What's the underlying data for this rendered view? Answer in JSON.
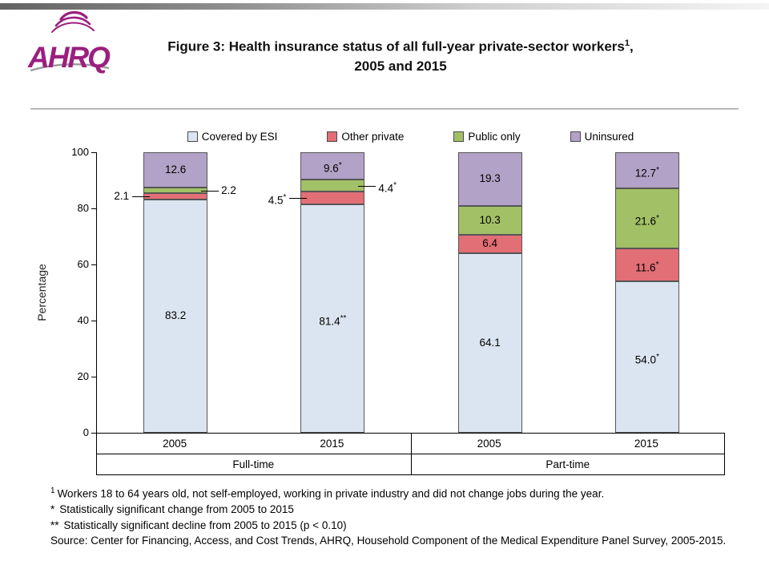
{
  "header": {
    "logo_text": "AHRQ",
    "logo_color": "#9b1f7f",
    "title_line1": "Figure 3: Health insurance status of all full-year private-sector workers",
    "title_sup": "1",
    "title_comma": ",",
    "title_line2": "2005 and 2015"
  },
  "chart_data": {
    "type": "stacked-bar",
    "ylabel": "Percentage",
    "ylim": [
      0,
      100
    ],
    "yticks": [
      0,
      20,
      40,
      60,
      80,
      100
    ],
    "grid": "off",
    "legend_position": "top",
    "legend": [
      {
        "series": "Covered by ESI",
        "color": "#dbe5f1"
      },
      {
        "series": "Other private",
        "color": "#e26e76"
      },
      {
        "series": "Public only",
        "color": "#a2c065"
      },
      {
        "series": "Uninsured",
        "color": "#b3a2c7"
      }
    ],
    "groups": [
      {
        "label": "Full-time",
        "bars": [
          {
            "category": "2005",
            "segments": [
              {
                "series": "Covered by ESI",
                "value": 83.2,
                "label": "83.2",
                "sup": "",
                "label_pos": "inside"
              },
              {
                "series": "Other private",
                "value": 2.1,
                "label": "2.1",
                "sup": "",
                "label_pos": "left"
              },
              {
                "series": "Public only",
                "value": 2.2,
                "label": "2.2",
                "sup": "",
                "label_pos": "right"
              },
              {
                "series": "Uninsured",
                "value": 12.6,
                "label": "12.6",
                "sup": "",
                "label_pos": "inside"
              }
            ]
          },
          {
            "category": "2015",
            "segments": [
              {
                "series": "Covered by ESI",
                "value": 81.4,
                "label": "81.4",
                "sup": "**",
                "label_pos": "inside"
              },
              {
                "series": "Other private",
                "value": 4.5,
                "label": "4.5",
                "sup": "*",
                "label_pos": "left"
              },
              {
                "series": "Public only",
                "value": 4.4,
                "label": "4.4",
                "sup": "*",
                "label_pos": "right"
              },
              {
                "series": "Uninsured",
                "value": 9.6,
                "label": "9.6",
                "sup": "*",
                "label_pos": "inside"
              }
            ]
          }
        ]
      },
      {
        "label": "Part-time",
        "bars": [
          {
            "category": "2005",
            "segments": [
              {
                "series": "Covered by ESI",
                "value": 64.1,
                "label": "64.1",
                "sup": "",
                "label_pos": "inside"
              },
              {
                "series": "Other private",
                "value": 6.4,
                "label": "6.4",
                "sup": "",
                "label_pos": "inside"
              },
              {
                "series": "Public only",
                "value": 10.3,
                "label": "10.3",
                "sup": "",
                "label_pos": "inside"
              },
              {
                "series": "Uninsured",
                "value": 19.3,
                "label": "19.3",
                "sup": "",
                "label_pos": "inside"
              }
            ]
          },
          {
            "category": "2015",
            "segments": [
              {
                "series": "Covered by ESI",
                "value": 54.0,
                "label": "54.0",
                "sup": "*",
                "label_pos": "inside"
              },
              {
                "series": "Other private",
                "value": 11.6,
                "label": "11.6",
                "sup": "*",
                "label_pos": "inside"
              },
              {
                "series": "Public only",
                "value": 21.6,
                "label": "21.6",
                "sup": "*",
                "label_pos": "inside"
              },
              {
                "series": "Uninsured",
                "value": 12.7,
                "label": "12.7",
                "sup": "*",
                "label_pos": "inside"
              }
            ]
          }
        ]
      }
    ]
  },
  "footnotes": [
    {
      "sup": "1",
      "prefix": "",
      "text": "Workers 18 to 64 years old, not self-employed, working in private industry and did not change jobs during the year."
    },
    {
      "sup": "",
      "prefix": "*",
      "text": "Statistically significant change from 2005 to 2015"
    },
    {
      "sup": "",
      "prefix": "**",
      "text": "Statistically significant decline from 2005 to 2015 (p < 0.10)"
    },
    {
      "sup": "",
      "prefix": "",
      "text": "Source: Center for Financing, Access, and Cost Trends, AHRQ, Household Component of the Medical Expenditure Panel Survey, 2005-2015."
    }
  ]
}
